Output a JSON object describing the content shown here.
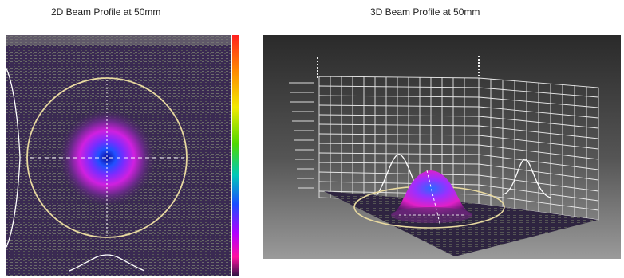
{
  "titles": {
    "left": "2D Beam Profile at 50mm",
    "right": "3D Beam Profile at 50mm"
  },
  "colors": {
    "background_2d": "#3a2a52",
    "background_3d_top": "#2f2f2f",
    "background_3d_bottom": "#8a8a8a",
    "grid_lines": "#e8e8e8",
    "aperture_ring": "#e8d9a0",
    "profile_curve": "#ffffff"
  },
  "colorbar": [
    "#ff2020",
    "#ff8a00",
    "#f2ea00",
    "#4fd800",
    "#00c8b8",
    "#1a4dff",
    "#b000ff",
    "#ff10a0",
    "#2a1440"
  ]
}
